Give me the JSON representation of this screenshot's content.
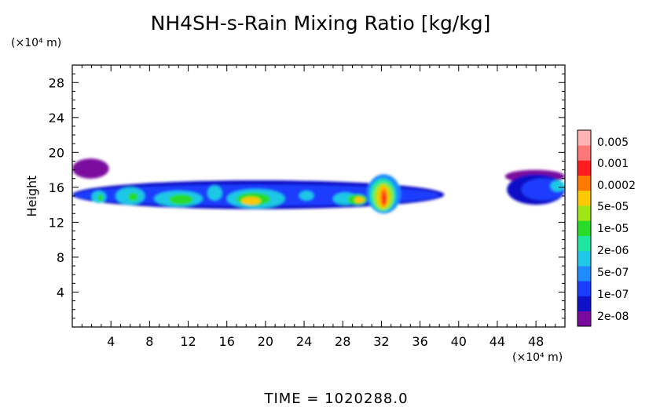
{
  "chart_data": {
    "type": "heatmap",
    "title": "NH4SH-s-Rain Mixing Ratio [kg/kg]",
    "ylabel": "Height",
    "y_unit": "(×10⁴ m)",
    "x_unit": "(×10⁴ m)",
    "xlim": [
      0,
      51
    ],
    "ylim": [
      0,
      30
    ],
    "x_ticks": [
      "4",
      "8",
      "12",
      "16",
      "20",
      "24",
      "28",
      "32",
      "36",
      "40",
      "44",
      "48"
    ],
    "y_ticks": [
      "4",
      "8",
      "12",
      "16",
      "20",
      "24",
      "28"
    ],
    "colorbar": {
      "labels": [
        "0.005",
        "0.001",
        "0.0002",
        "5e-05",
        "1e-05",
        "2e-06",
        "5e-07",
        "1e-07",
        "2e-08"
      ],
      "colors": [
        "#7a0a9e",
        "#1010c8",
        "#1a3cff",
        "#1e8cff",
        "#1ec8e6",
        "#1ee6a0",
        "#28dc28",
        "#a0e614",
        "#ffc800",
        "#ff7800",
        "#ff1e1e",
        "#ff7878",
        "#ffb4b4"
      ]
    },
    "regions": [
      {
        "x0": 0.0,
        "x1": 3.8,
        "y0": 17.0,
        "y1": 19.3,
        "level": 0
      },
      {
        "x0": 0.0,
        "x1": 38.5,
        "y0": 13.5,
        "y1": 16.8,
        "level": 1
      },
      {
        "x0": 0.2,
        "x1": 38.0,
        "y0": 13.9,
        "y1": 16.3,
        "level": 2
      },
      {
        "x0": 2.0,
        "x1": 3.5,
        "y0": 14.2,
        "y1": 15.6,
        "level": 4
      },
      {
        "x0": 4.5,
        "x1": 7.5,
        "y0": 14.0,
        "y1": 16.0,
        "level": 4
      },
      {
        "x0": 8.5,
        "x1": 13.5,
        "y0": 13.8,
        "y1": 15.6,
        "level": 4
      },
      {
        "x0": 14.0,
        "x1": 15.5,
        "y0": 14.5,
        "y1": 16.2,
        "level": 4
      },
      {
        "x0": 16.0,
        "x1": 22.0,
        "y0": 13.6,
        "y1": 15.8,
        "level": 4
      },
      {
        "x0": 23.5,
        "x1": 25.0,
        "y0": 14.5,
        "y1": 15.6,
        "level": 4
      },
      {
        "x0": 27.0,
        "x1": 29.5,
        "y0": 14.0,
        "y1": 15.4,
        "level": 4
      },
      {
        "x0": 30.5,
        "x1": 34.0,
        "y0": 13.0,
        "y1": 17.5,
        "level": 3
      },
      {
        "x0": 2.6,
        "x1": 3.2,
        "y0": 14.4,
        "y1": 15.2,
        "level": 6
      },
      {
        "x0": 5.8,
        "x1": 6.8,
        "y0": 14.4,
        "y1": 15.4,
        "level": 6
      },
      {
        "x0": 10.0,
        "x1": 12.5,
        "y0": 14.0,
        "y1": 15.2,
        "level": 6
      },
      {
        "x0": 17.0,
        "x1": 20.5,
        "y0": 13.9,
        "y1": 15.4,
        "level": 6
      },
      {
        "x0": 17.5,
        "x1": 19.5,
        "y0": 14.0,
        "y1": 14.9,
        "level": 8
      },
      {
        "x0": 28.5,
        "x1": 30.5,
        "y0": 14.0,
        "y1": 15.2,
        "level": 6
      },
      {
        "x0": 29.2,
        "x1": 30.2,
        "y0": 14.2,
        "y1": 14.9,
        "level": 8
      },
      {
        "x0": 30.8,
        "x1": 33.5,
        "y0": 13.2,
        "y1": 17.0,
        "level": 5
      },
      {
        "x0": 31.2,
        "x1": 33.2,
        "y0": 13.4,
        "y1": 16.5,
        "level": 7
      },
      {
        "x0": 31.6,
        "x1": 32.8,
        "y0": 13.6,
        "y1": 16.2,
        "level": 8
      },
      {
        "x0": 31.9,
        "x1": 32.6,
        "y0": 13.8,
        "y1": 15.9,
        "level": 9
      },
      {
        "x0": 32.1,
        "x1": 32.5,
        "y0": 14.0,
        "y1": 15.4,
        "level": 10
      },
      {
        "x0": 44.8,
        "x1": 51.0,
        "y0": 16.5,
        "y1": 18.0,
        "level": 0
      },
      {
        "x0": 45.0,
        "x1": 51.0,
        "y0": 14.0,
        "y1": 17.5,
        "level": 1
      },
      {
        "x0": 46.5,
        "x1": 51.0,
        "y0": 14.5,
        "y1": 17.0,
        "level": 2
      },
      {
        "x0": 49.5,
        "x1": 51.0,
        "y0": 15.5,
        "y1": 16.8,
        "level": 4
      }
    ]
  },
  "footer": {
    "time_label": "TIME = 1020288.0"
  }
}
